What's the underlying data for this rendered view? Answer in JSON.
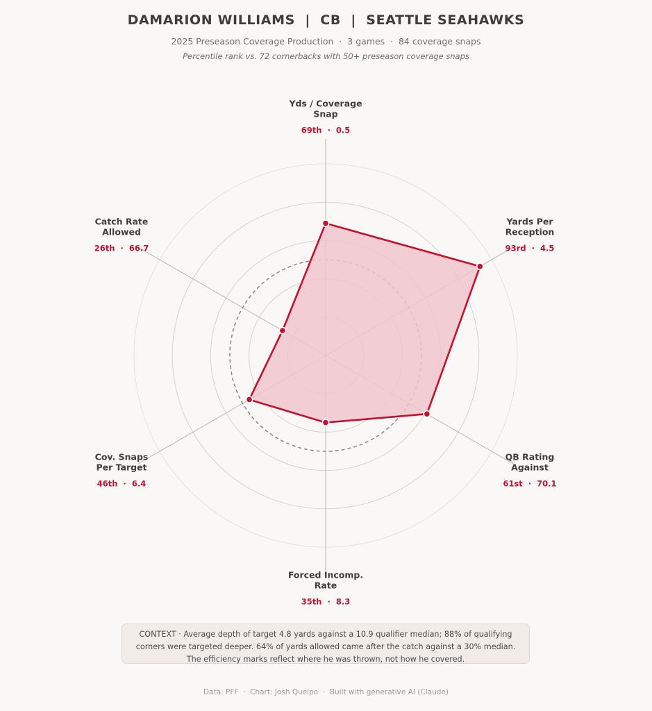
{
  "header": {
    "title": "DAMARION WILLIAMS  |  CB  |  SEATTLE SEAHAWKS",
    "subtitle": "2025 Preseason Coverage Production  ·  3 games  ·  84 coverage snaps",
    "subtitle2": "Percentile rank vs. 72 cornerbacks with 50+ preseason coverage snaps"
  },
  "chart_data": {
    "type": "radar",
    "scale": {
      "min": 0,
      "max": 100,
      "rings": [
        20,
        40,
        60,
        80,
        100
      ]
    },
    "reference_ring": 50,
    "accent_color": "#c8102e",
    "fill_color": "#f0c6cd",
    "axes": [
      {
        "label_lines": [
          "Yds / Coverage",
          "Snap"
        ],
        "value_label": "69th  ·  0.5",
        "percentile": 69,
        "stat": 0.5
      },
      {
        "label_lines": [
          "Yards Per",
          "Reception"
        ],
        "value_label": "93rd  ·  4.5",
        "percentile": 93,
        "stat": 4.5
      },
      {
        "label_lines": [
          "QB Rating",
          "Against"
        ],
        "value_label": "61st  ·  70.1",
        "percentile": 61,
        "stat": 70.1
      },
      {
        "label_lines": [
          "Forced Incomp.",
          "Rate"
        ],
        "value_label": "35th  ·  8.3",
        "percentile": 35,
        "stat": 8.3
      },
      {
        "label_lines": [
          "Cov. Snaps",
          "Per Target"
        ],
        "value_label": "46th  ·  6.4",
        "percentile": 46,
        "stat": 6.4
      },
      {
        "label_lines": [
          "Catch Rate",
          "Allowed"
        ],
        "value_label": "26th  ·  66.7",
        "percentile": 26,
        "stat": 66.7
      }
    ]
  },
  "context": {
    "text": "CONTEXT  ·  Average depth of target 4.8 yards against a 10.9 qualifier median; 88% of qualifying corners were targeted deeper. 64% of yards allowed came after the catch against a 30% median. The efficiency marks reflect where he was thrown, not how he covered."
  },
  "footer": {
    "text": "Data: PFF  ·  Chart: Josh Queipo  ·  Built with generative AI (Claude)"
  }
}
